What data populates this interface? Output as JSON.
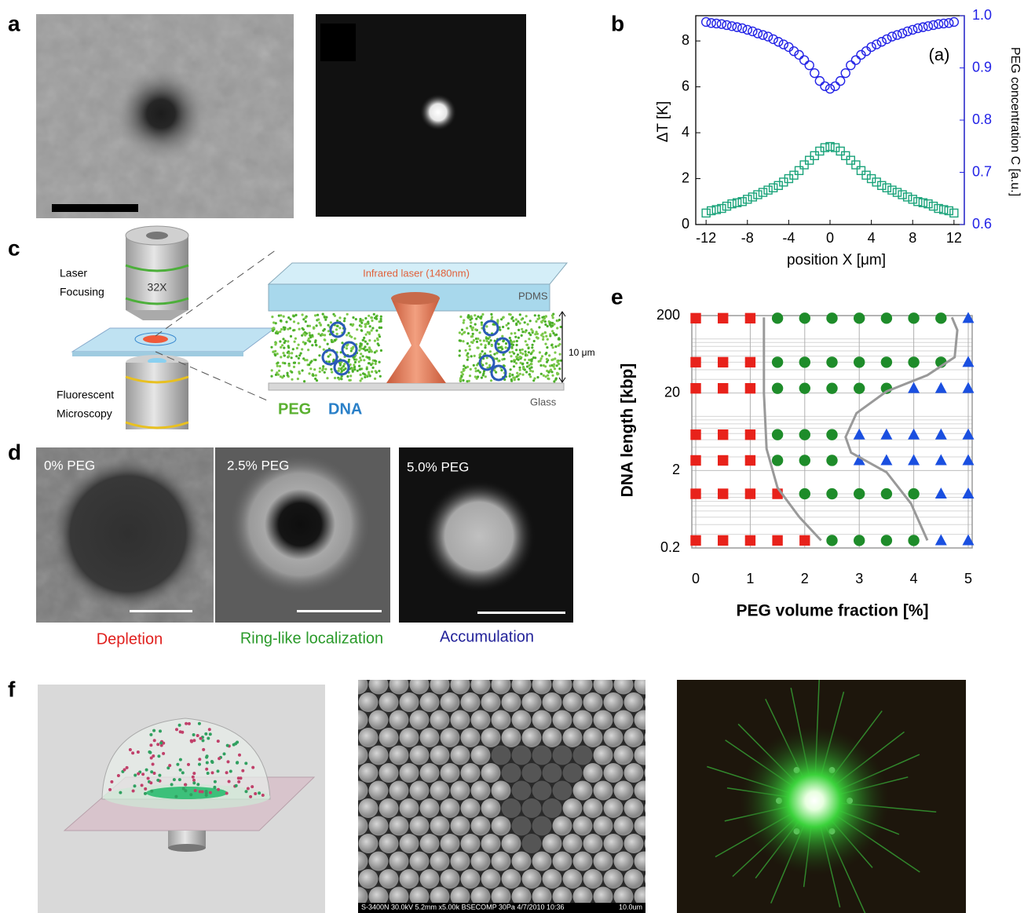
{
  "panel_labels": [
    "a",
    "b",
    "c",
    "d",
    "e",
    "f"
  ],
  "chart_data": [
    {
      "type": "scatter",
      "xlabel": "position X [μm]",
      "ylabel": "ΔT [K]",
      "y2label": "PEG concentration C [a.u.]",
      "annotation": "(a)",
      "x": [
        -12,
        -11.5,
        -11,
        -10.5,
        -10,
        -9.5,
        -9,
        -8.5,
        -8,
        -7.5,
        -7,
        -6.5,
        -6,
        -5.5,
        -5,
        -4.5,
        -4,
        -3.5,
        -3,
        -2.5,
        -2,
        -1.5,
        -1,
        -0.5,
        0,
        0.5,
        1,
        1.5,
        2,
        2.5,
        3,
        3.5,
        4,
        4.5,
        5,
        5.5,
        6,
        6.5,
        7,
        7.5,
        8,
        8.5,
        9,
        9.5,
        10,
        10.5,
        11,
        11.5,
        12
      ],
      "xlim": [
        -13,
        13
      ],
      "xticks": [
        -12,
        -8,
        -4,
        0,
        4,
        8,
        12
      ],
      "ylim": [
        0,
        9.1
      ],
      "yticks": [
        0,
        2,
        4,
        6,
        8
      ],
      "y2lim": [
        0.6,
        1
      ],
      "y2ticks": [
        0.6,
        0.7,
        0.8,
        0.9,
        {
          "value": 1,
          "label": "1.0"
        }
      ],
      "series": [
        {
          "color": "#1aa37a",
          "marker": "square",
          "values": [
            0.5,
            0.6,
            0.65,
            0.7,
            0.8,
            0.9,
            0.95,
            1.0,
            1.1,
            1.2,
            1.3,
            1.4,
            1.5,
            1.6,
            1.7,
            1.85,
            2.0,
            2.15,
            2.35,
            2.6,
            2.8,
            3.0,
            3.2,
            3.35,
            3.4,
            3.35,
            3.2,
            3.0,
            2.8,
            2.6,
            2.35,
            2.15,
            2.0,
            1.85,
            1.7,
            1.6,
            1.5,
            1.4,
            1.3,
            1.2,
            1.1,
            1.0,
            0.95,
            0.9,
            0.8,
            0.7,
            0.65,
            0.6,
            0.5
          ]
        },
        {
          "color": "#2323e6",
          "marker": "circle",
          "axis": "y2",
          "values": [
            0.988,
            0.986,
            0.985,
            0.984,
            0.982,
            0.98,
            0.978,
            0.976,
            0.973,
            0.97,
            0.966,
            0.963,
            0.96,
            0.955,
            0.95,
            0.945,
            0.94,
            0.932,
            0.925,
            0.915,
            0.905,
            0.89,
            0.875,
            0.865,
            0.86,
            0.865,
            0.875,
            0.89,
            0.905,
            0.915,
            0.925,
            0.932,
            0.94,
            0.945,
            0.95,
            0.955,
            0.96,
            0.963,
            0.966,
            0.97,
            0.973,
            0.976,
            0.978,
            0.98,
            0.982,
            0.984,
            0.985,
            0.986,
            0.988
          ]
        }
      ]
    },
    {
      "type": "scatter",
      "xlabel": "PEG volume fraction [%]",
      "ylabel": "DNA length [kbp]",
      "xlim": [
        0,
        5
      ],
      "xticks": [
        0,
        1,
        2,
        3,
        4,
        5
      ],
      "ylim": [
        0.2,
        200
      ],
      "yticks": [
        0.2,
        2,
        20,
        200
      ],
      "y_minor_ticks": [
        0.3,
        0.4,
        0.5,
        0.6,
        0.7,
        0.8,
        0.9,
        1,
        3,
        4,
        5,
        6,
        7,
        8,
        9,
        10,
        30,
        40,
        50,
        60,
        70,
        80,
        90,
        100
      ],
      "log_y": true,
      "grid": true,
      "series": [
        {
          "color": "#e8221b",
          "marker": "square",
          "x": [
            0,
            0.5,
            1,
            0,
            0.5,
            1,
            0,
            0.5,
            1,
            0,
            0.5,
            1,
            0,
            0.5,
            1,
            0,
            0.5,
            1,
            1.5,
            0,
            0.5,
            1,
            1.5,
            2
          ],
          "values": [
            185,
            185,
            185,
            50,
            50,
            50,
            23,
            23,
            23,
            5.8,
            5.8,
            5.8,
            2.7,
            2.7,
            2.7,
            1,
            1,
            1,
            1,
            0.25,
            0.25,
            0.25,
            0.25,
            0.25
          ]
        },
        {
          "color": "#1e8c2a",
          "marker": "circle",
          "x": [
            1.5,
            2,
            2.5,
            3,
            3.5,
            4,
            4.5,
            1.5,
            2,
            2.5,
            3,
            3.5,
            4,
            4.5,
            1.5,
            2,
            2.5,
            3,
            3.5,
            1.5,
            2,
            2.5,
            1.5,
            2,
            2.5,
            2,
            2.5,
            3,
            3.5,
            4,
            2.5,
            3,
            3.5,
            4
          ],
          "values": [
            185,
            185,
            185,
            185,
            185,
            185,
            185,
            50,
            50,
            50,
            50,
            50,
            50,
            50,
            23,
            23,
            23,
            23,
            23,
            5.8,
            5.8,
            5.8,
            2.7,
            2.7,
            2.7,
            1,
            1,
            1,
            1,
            1,
            0.25,
            0.25,
            0.25,
            0.25
          ]
        },
        {
          "color": "#1a4fe0",
          "marker": "triangle",
          "x": [
            5,
            5,
            4,
            4.5,
            5,
            3,
            3.5,
            4,
            4.5,
            5,
            3,
            3.5,
            4,
            4.5,
            5,
            4.5,
            5,
            4.5,
            5
          ],
          "values": [
            185,
            50,
            23,
            23,
            23,
            5.8,
            5.8,
            5.8,
            5.8,
            5.8,
            2.7,
            2.7,
            2.7,
            2.7,
            2.7,
            1,
            1,
            0.25,
            0.25
          ]
        },
        {
          "color": "#999999",
          "marker": "line",
          "x": [
            2.3,
            1.9,
            1.5,
            1.3,
            1.25,
            1.25
          ],
          "values": [
            0.25,
            0.5,
            1.2,
            3.8,
            20,
            190
          ]
        },
        {
          "color": "#999999",
          "marker": "line",
          "x": [
            4.25,
            3.95,
            3.5,
            2.85,
            2.75,
            2.95,
            3.5,
            4.25,
            4.75,
            4.8,
            4.7
          ],
          "values": [
            0.25,
            0.75,
            1.9,
            3.4,
            5.4,
            11,
            21,
            34,
            58,
            130,
            190
          ]
        }
      ]
    }
  ],
  "diagram": {
    "laser": "Laser",
    "focusing": "Focusing",
    "objective": "32X",
    "fluorescent": "Fluorescent",
    "microscopy": "Microscopy",
    "infrared": "Infrared laser  (1480nm)",
    "pdms": "PDMS",
    "height": "10 μm",
    "peg": "PEG",
    "dna": "DNA",
    "glass": "Glass"
  },
  "panel_d": [
    {
      "label": "0% PEG",
      "caption": "Depletion"
    },
    {
      "label": "2.5% PEG",
      "caption": "Ring-like localization"
    },
    {
      "label": "5.0% PEG",
      "caption": "Accumulation"
    }
  ],
  "panel_f": {
    "sem_info": "S-3400N 30.0kV 5.2mm x5.00k BSECOMP 30Pa 4/7/2010 10:36",
    "sem_scale": "10.0um"
  }
}
